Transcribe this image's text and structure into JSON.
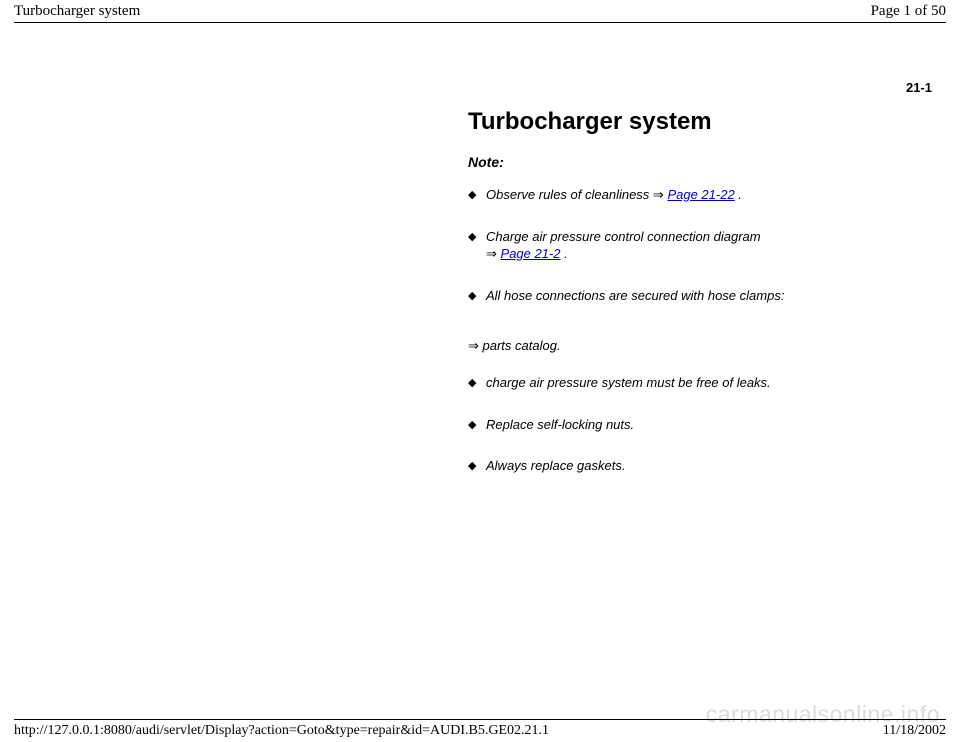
{
  "header": {
    "title": "Turbocharger system",
    "page_info": "Page 1 of 50"
  },
  "section_number": "21-1",
  "body": {
    "heading": "Turbocharger system",
    "note_label": "Note:",
    "items": {
      "i1_pre": "Observe rules of cleanliness ",
      "i1_link": "Page 21-22",
      "i1_post": " .",
      "i2_pre": "Charge air pressure control connection diagram ",
      "i2_link": "Page 21-2",
      "i2_post": " .",
      "i3": "All hose connections are secured with hose clamps:",
      "plain1": " parts catalog.",
      "i4": "charge air pressure system must be free of leaks.",
      "i5": "Replace self-locking nuts.",
      "i6": "Always replace gaskets."
    }
  },
  "footer": {
    "url": "http://127.0.0.1:8080/audi/servlet/Display?action=Goto&type=repair&id=AUDI.B5.GE02.21.1",
    "date": "11/18/2002"
  },
  "watermark": "carmanualsonline.info",
  "glyphs": {
    "diamond": "◆",
    "darrow": "⇒"
  }
}
